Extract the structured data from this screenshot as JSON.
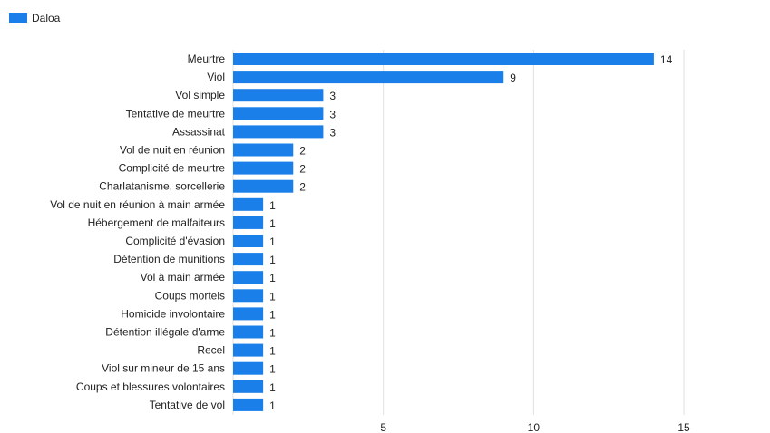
{
  "chart_data": {
    "type": "bar",
    "orientation": "horizontal",
    "categories": [
      "Meurtre",
      "Viol",
      "Vol simple",
      "Tentative de meurtre",
      "Assassinat",
      "Vol de nuit en réunion",
      "Complicité de meurtre",
      "Charlatanisme, sorcellerie",
      "Vol de nuit en réunion à main armée",
      "Hébergement de malfaiteurs",
      "Complicité d'évasion",
      "Détention de munitions",
      "Vol à main armée",
      "Coups mortels",
      "Homicide involontaire",
      "Détention illégale d'arme",
      "Recel",
      "Viol sur mineur de 15 ans",
      "Coups et blessures volontaires",
      "Tentative de vol"
    ],
    "series": [
      {
        "name": "Daloa",
        "color": "#1a7fe8",
        "values": [
          14,
          9,
          3,
          3,
          3,
          2,
          2,
          2,
          1,
          1,
          1,
          1,
          1,
          1,
          1,
          1,
          1,
          1,
          1,
          1
        ]
      }
    ],
    "xlim": [
      0,
      16.9
    ],
    "xticks": [
      5,
      10,
      15
    ],
    "grid": true,
    "legend": "top-left",
    "title": "",
    "xlabel": "",
    "ylabel": ""
  }
}
